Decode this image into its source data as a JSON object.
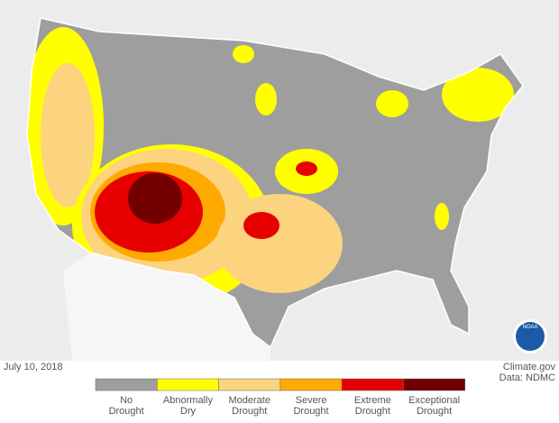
{
  "date": "July 10, 2018",
  "source": "Climate.gov",
  "credit": "Data: NDMC",
  "logo_text": "NOAA",
  "legend": [
    {
      "lines": [
        "No",
        "Drought"
      ],
      "color": "#9e9e9e"
    },
    {
      "lines": [
        "Abnormally",
        "Dry"
      ],
      "color": "#ffff00"
    },
    {
      "lines": [
        "Moderate",
        "Drought"
      ],
      "color": "#fcd37f"
    },
    {
      "lines": [
        "Severe",
        "Drought"
      ],
      "color": "#ffaa00"
    },
    {
      "lines": [
        "Extreme",
        "Drought"
      ],
      "color": "#e60000"
    },
    {
      "lines": [
        "Exceptional",
        "Drought"
      ],
      "color": "#730000"
    }
  ]
}
